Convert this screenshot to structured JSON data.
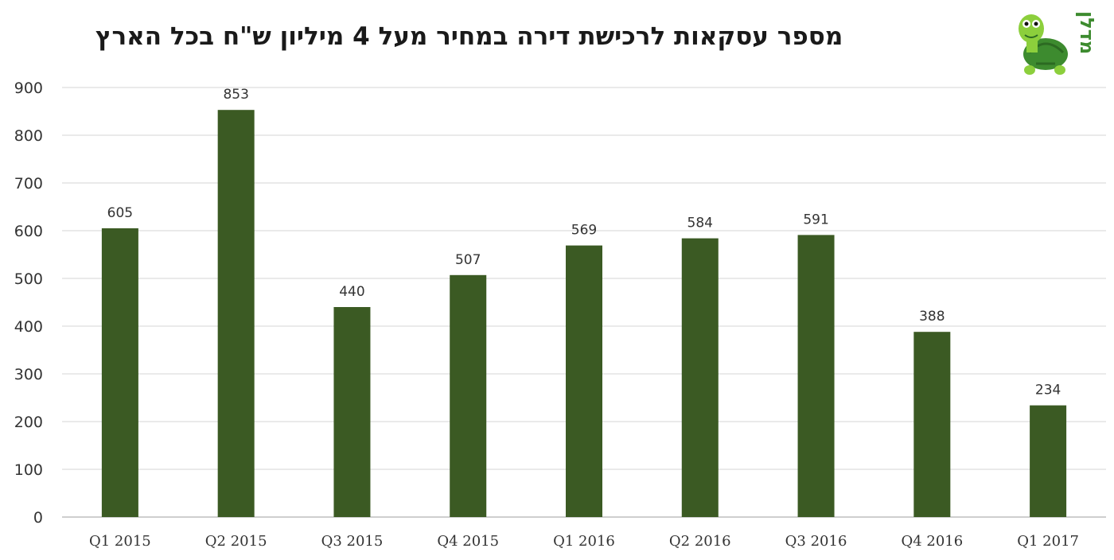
{
  "logo": {
    "text": "מדלן",
    "icon": "turtle-icon"
  },
  "colors": {
    "bar": "#3b5a23",
    "grid": "#e3e3e3",
    "axis": "#bfbfbf"
  },
  "chart_data": {
    "type": "bar",
    "title": "מספר עסקאות לרכישת דירה במחיר מעל 4 מיליון ש\"ח בכל הארץ",
    "categories": [
      "Q1 2015",
      "Q2 2015",
      "Q3 2015",
      "Q4 2015",
      "Q1 2016",
      "Q2 2016",
      "Q3 2016",
      "Q4 2016",
      "Q1 2017"
    ],
    "values": [
      605,
      853,
      440,
      507,
      569,
      584,
      591,
      388,
      234
    ],
    "yticks": [
      0,
      100,
      200,
      300,
      400,
      500,
      600,
      700,
      800,
      900
    ],
    "ylim": [
      0,
      900
    ],
    "grid": true,
    "data_labels": true,
    "xlabel": "",
    "ylabel": ""
  }
}
